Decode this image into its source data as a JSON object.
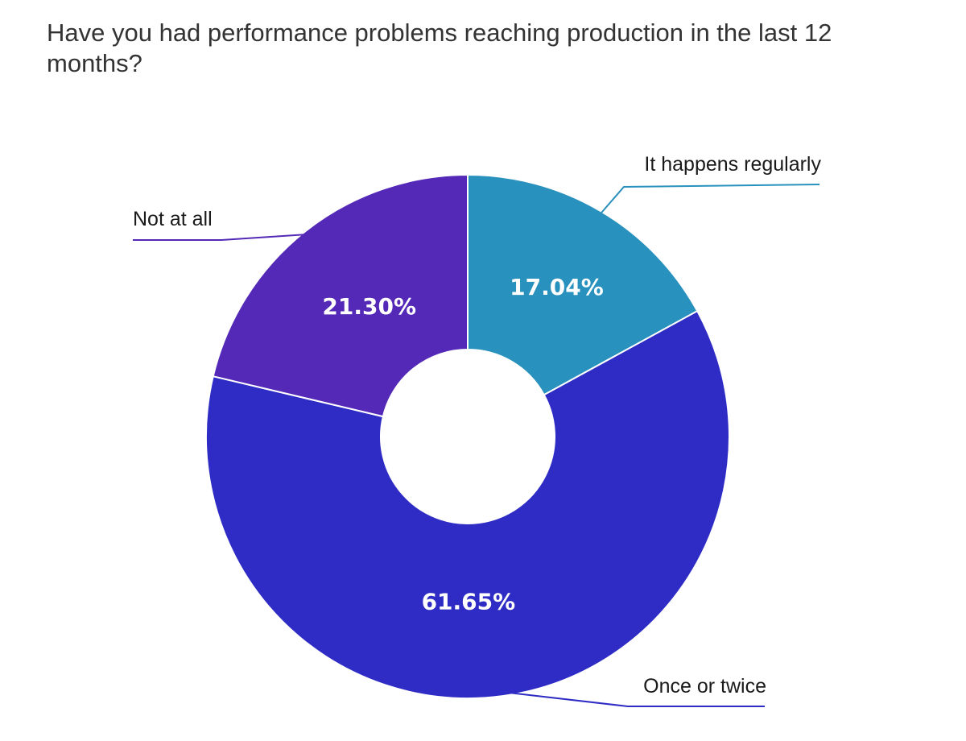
{
  "chart_data": {
    "type": "pie",
    "subtype": "donut",
    "title": "Have you had performance problems reaching production in the last 12 months?",
    "categories": [
      "It happens regularly",
      "Once or twice",
      "Not at all"
    ],
    "values": [
      17.04,
      61.65,
      21.3
    ],
    "value_labels": [
      "17.04%",
      "61.65%",
      "21.30%"
    ],
    "colors": [
      "#2891bd",
      "#2e2cc4",
      "#5429b7"
    ],
    "legend": "callout labels with leader lines"
  }
}
